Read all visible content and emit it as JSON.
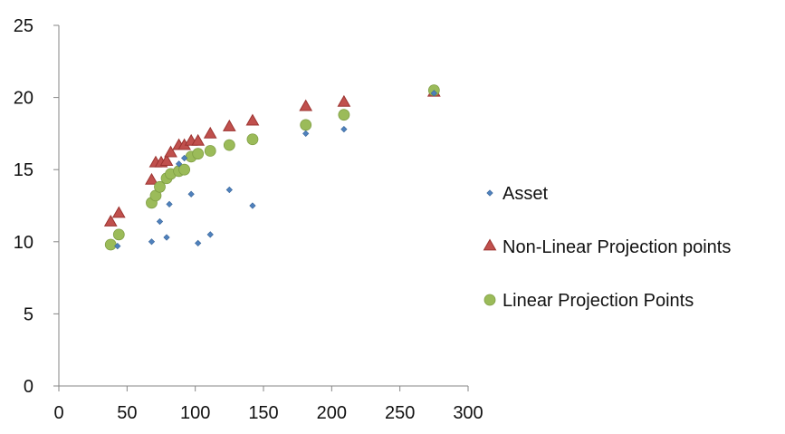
{
  "chart_data": {
    "type": "scatter",
    "title": "",
    "xlabel": "",
    "ylabel": "",
    "xlim": [
      0,
      300
    ],
    "ylim": [
      0,
      25
    ],
    "x_ticks": [
      "0",
      "50",
      "100",
      "150",
      "200",
      "250",
      "300"
    ],
    "y_ticks": [
      "0",
      "5",
      "10",
      "15",
      "20",
      "25"
    ],
    "grid": false,
    "legend_position": "right",
    "series": [
      {
        "name": "Asset",
        "marker": "diamond",
        "color": "#4f81bd",
        "points": [
          [
            43,
            9.7
          ],
          [
            68,
            10.0
          ],
          [
            74,
            11.4
          ],
          [
            79,
            10.3
          ],
          [
            81,
            12.6
          ],
          [
            88,
            15.4
          ],
          [
            92,
            15.8
          ],
          [
            97,
            13.3
          ],
          [
            102,
            9.9
          ],
          [
            111,
            10.5
          ],
          [
            125,
            13.6
          ],
          [
            142,
            12.5
          ],
          [
            181,
            17.5
          ],
          [
            209,
            17.8
          ],
          [
            275,
            20.3
          ]
        ]
      },
      {
        "name": "Non-Linear Projection points",
        "marker": "triangle",
        "color": "#c0504d",
        "points": [
          [
            38,
            11.4
          ],
          [
            44,
            12.0
          ],
          [
            68,
            14.3
          ],
          [
            71,
            15.5
          ],
          [
            75,
            15.5
          ],
          [
            79,
            15.6
          ],
          [
            82,
            16.2
          ],
          [
            88,
            16.7
          ],
          [
            92,
            16.7
          ],
          [
            97,
            17.0
          ],
          [
            102,
            17.0
          ],
          [
            111,
            17.5
          ],
          [
            125,
            18.0
          ],
          [
            142,
            18.4
          ],
          [
            181,
            19.4
          ],
          [
            209,
            19.7
          ],
          [
            275,
            20.4
          ]
        ]
      },
      {
        "name": "Linear Projection Points",
        "marker": "circle",
        "color": "#9bbb59",
        "points": [
          [
            38,
            9.8
          ],
          [
            44,
            10.5
          ],
          [
            68,
            12.7
          ],
          [
            71,
            13.2
          ],
          [
            74,
            13.8
          ],
          [
            79,
            14.4
          ],
          [
            82,
            14.7
          ],
          [
            88,
            14.9
          ],
          [
            92,
            15.0
          ],
          [
            97,
            15.9
          ],
          [
            102,
            16.1
          ],
          [
            111,
            16.3
          ],
          [
            125,
            16.7
          ],
          [
            142,
            17.1
          ],
          [
            181,
            18.1
          ],
          [
            209,
            18.8
          ],
          [
            275,
            20.5
          ]
        ]
      }
    ]
  }
}
